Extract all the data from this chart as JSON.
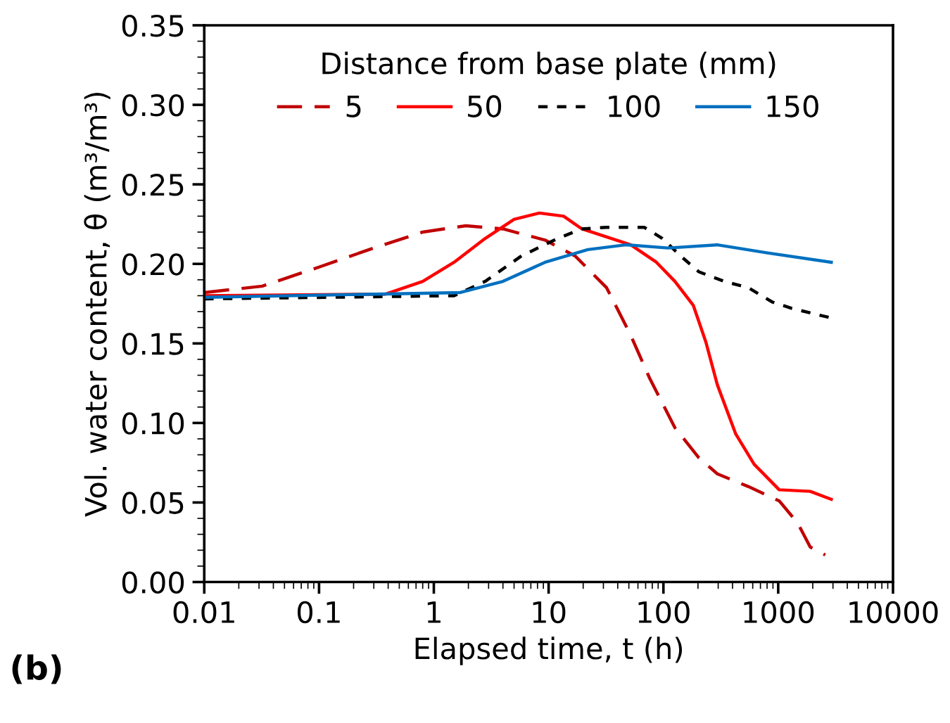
{
  "chart_data": {
    "type": "line",
    "xlabel": "Elapsed time, t (h)",
    "ylabel": "Vol. water content, θ (m³/m³)",
    "legend_title": "Distance from base plate (mm)",
    "legend": "top",
    "grid": false,
    "log": "x",
    "annotations": [
      "(b)"
    ],
    "xlim": [
      0.01,
      10000
    ],
    "xticks": [
      0.01,
      0.1,
      1,
      10,
      100,
      1000,
      10000
    ],
    "ylim": [
      0,
      0.35
    ],
    "yticks": [
      {
        "value": 0,
        "label": "0.00"
      },
      {
        "value": 0.05,
        "label": "0.05"
      },
      {
        "value": 0.1,
        "label": "0.10"
      },
      {
        "value": 0.15,
        "label": "0.15"
      },
      {
        "value": 0.2,
        "label": "0.20"
      },
      {
        "value": 0.25,
        "label": "0.25"
      },
      {
        "value": 0.3,
        "label": "0.30"
      },
      {
        "value": 0.35,
        "label": "0.35"
      }
    ],
    "series": [
      {
        "name": "5",
        "color": "#c00000",
        "line_style": "dashed",
        "x": [
          0.01,
          0.032,
          0.1,
          0.3,
          0.8,
          1.9,
          4,
          9.3,
          17,
          32,
          52,
          76,
          126,
          204,
          295,
          550,
          1020,
          1480,
          1900,
          2570
        ],
        "values": [
          0.182,
          0.186,
          0.198,
          0.21,
          0.22,
          0.224,
          0.222,
          0.215,
          0.205,
          0.185,
          0.155,
          0.128,
          0.097,
          0.078,
          0.068,
          0.06,
          0.051,
          0.037,
          0.022,
          0.017
        ]
      },
      {
        "name": "50",
        "color": "#ff0000",
        "line_style": "solid",
        "x": [
          0.01,
          0.38,
          0.8,
          1.5,
          2.8,
          5,
          8.3,
          13.5,
          19.5,
          32,
          52,
          87,
          126,
          182,
          234,
          295,
          427,
          617,
          1020,
          1900,
          2900
        ],
        "values": [
          0.18,
          0.181,
          0.189,
          0.201,
          0.216,
          0.228,
          0.232,
          0.23,
          0.222,
          0.217,
          0.212,
          0.201,
          0.189,
          0.174,
          0.151,
          0.124,
          0.093,
          0.074,
          0.058,
          0.057,
          0.052
        ]
      },
      {
        "name": "100",
        "color": "#000000",
        "line_style": "dotted",
        "x": [
          0.01,
          1.5,
          2.8,
          5.8,
          12,
          19.5,
          32,
          68,
          98,
          141,
          204,
          339,
          550,
          890,
          1320,
          2900
        ],
        "values": [
          0.178,
          0.18,
          0.189,
          0.205,
          0.216,
          0.222,
          0.223,
          0.223,
          0.216,
          0.205,
          0.195,
          0.189,
          0.185,
          0.176,
          0.172,
          0.166
        ]
      },
      {
        "name": "150",
        "color": "#0070c0",
        "line_style": "solid",
        "x": [
          0.01,
          1.7,
          4,
          9.3,
          22,
          47,
          110,
          295,
          790,
          2900
        ],
        "values": [
          0.179,
          0.182,
          0.189,
          0.201,
          0.209,
          0.212,
          0.21,
          0.212,
          0.207,
          0.201
        ]
      }
    ]
  }
}
